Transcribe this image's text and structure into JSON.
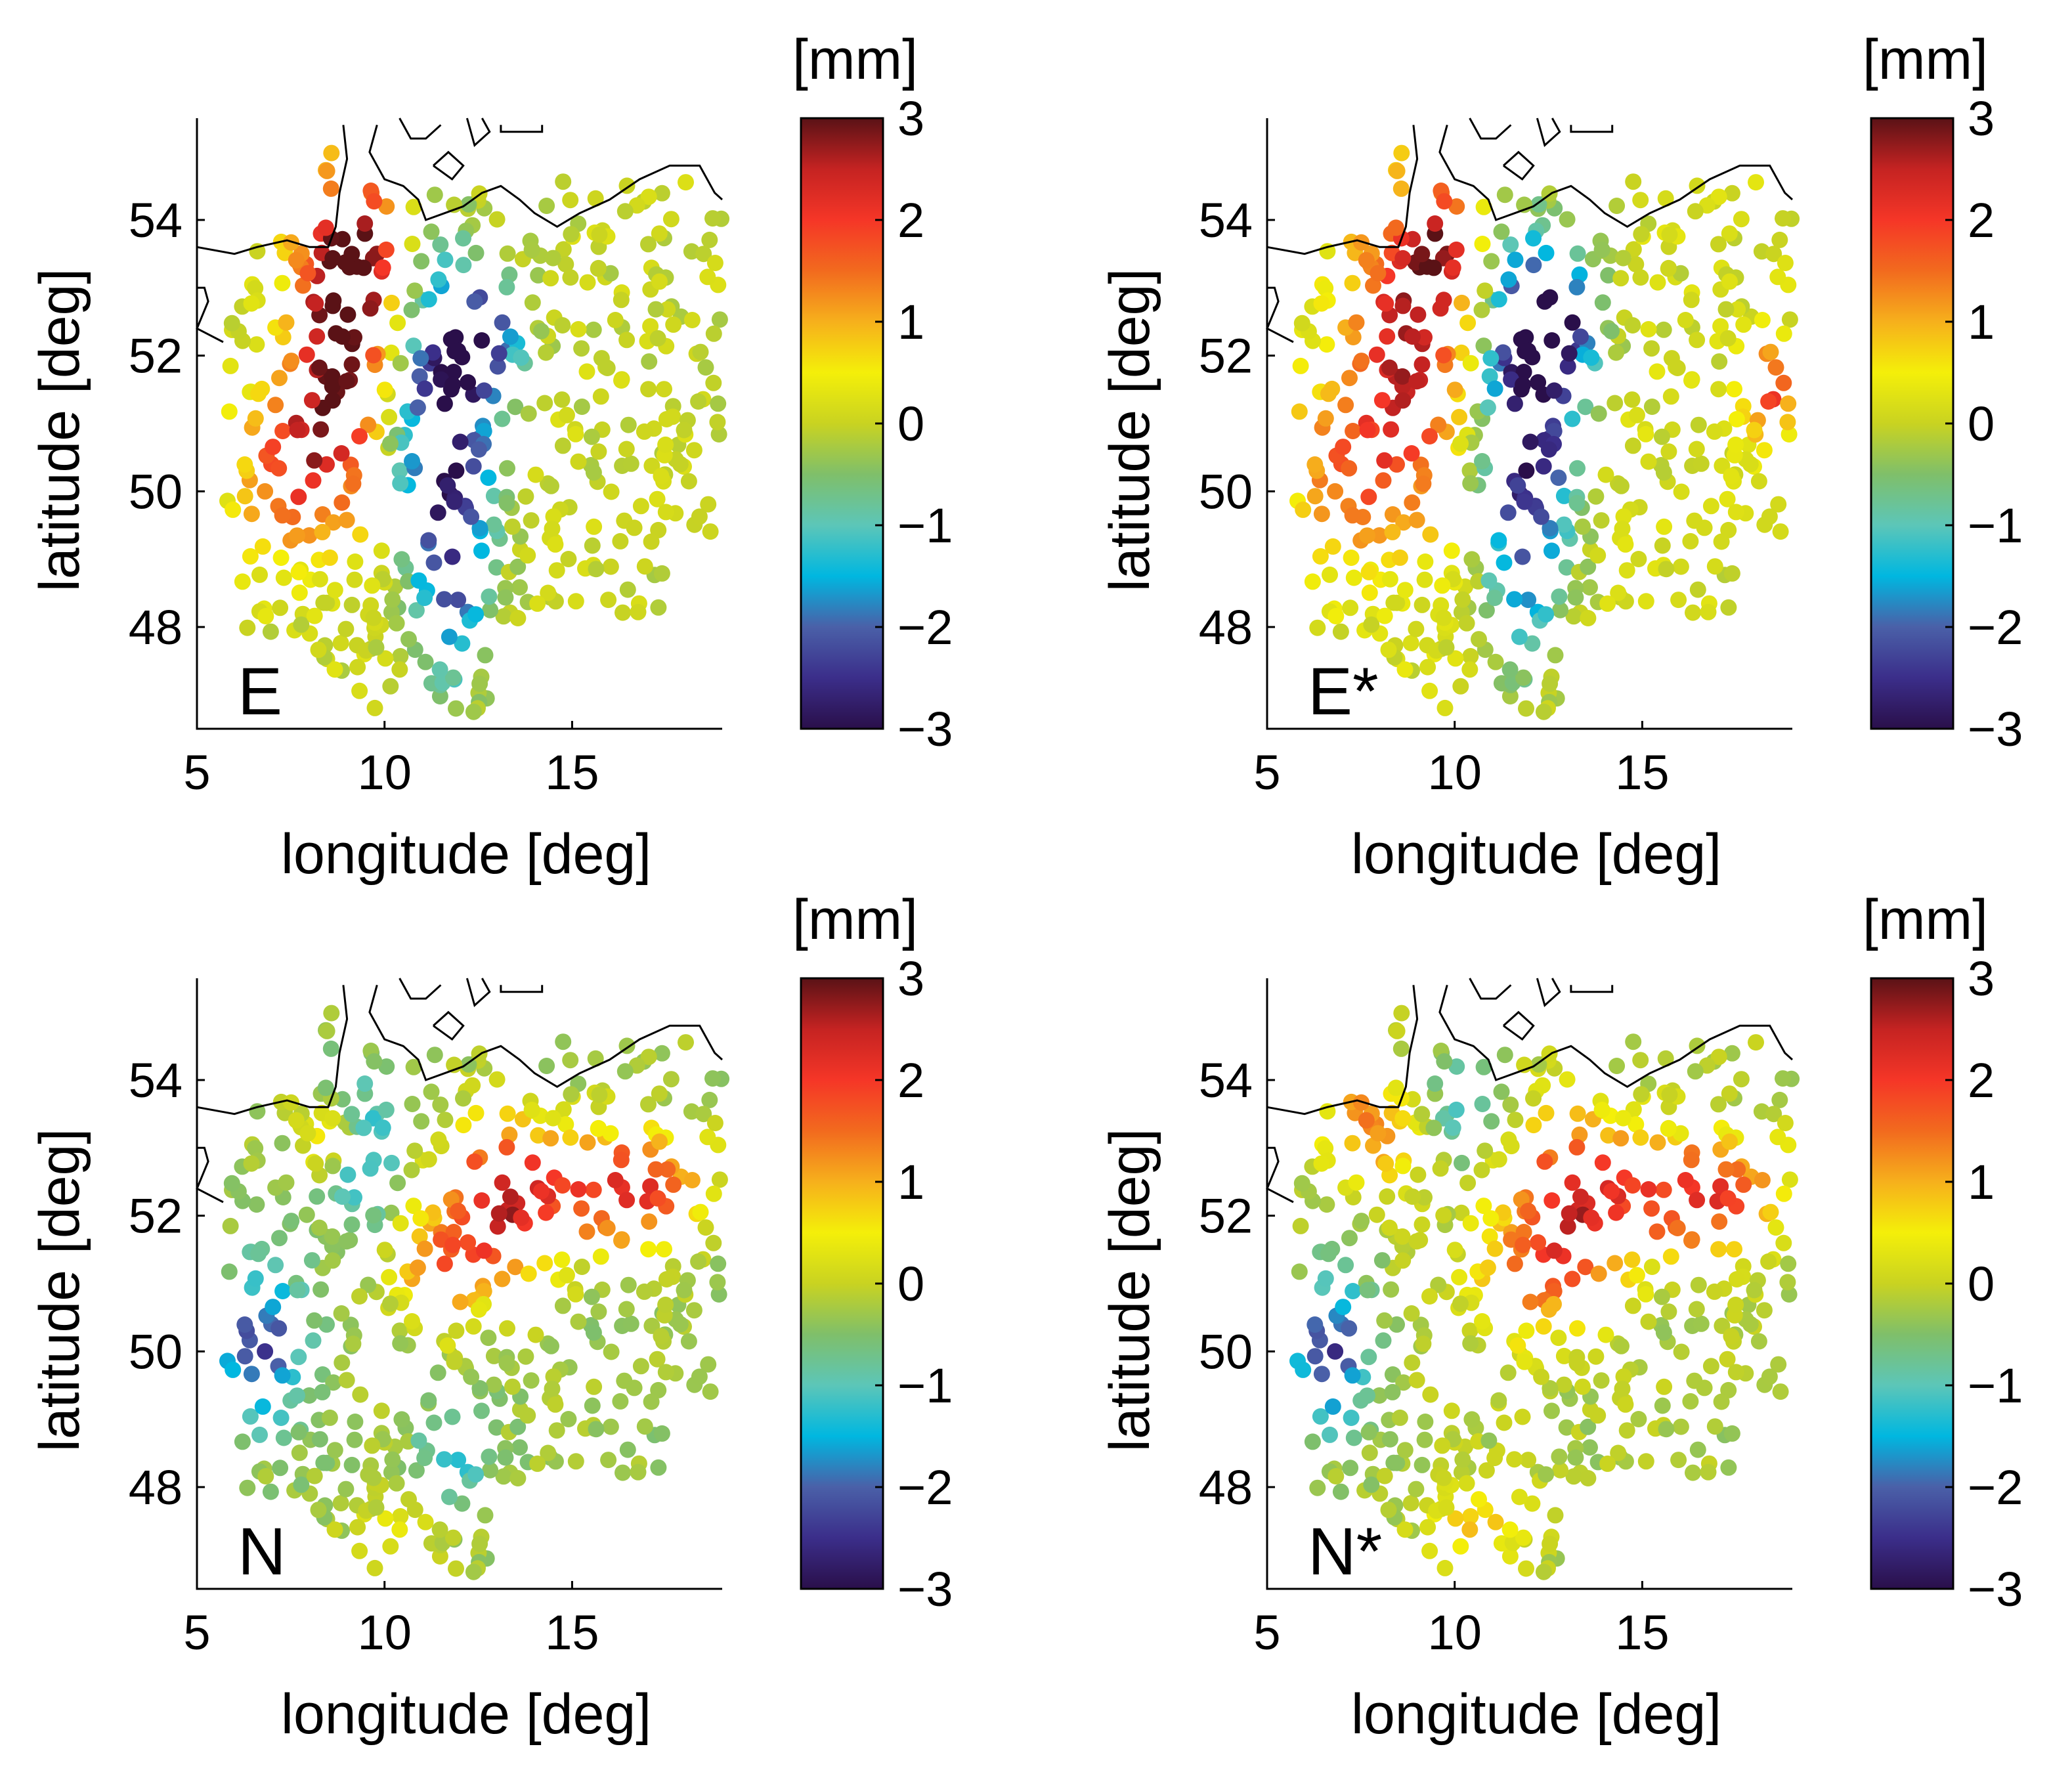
{
  "figure": {
    "description_free": true
  },
  "colorbar": {
    "label": "[mm]",
    "ticks": [
      "3",
      "2",
      "1",
      "0",
      "−1",
      "−2",
      "−3"
    ],
    "tick_values": [
      3,
      2,
      1,
      0,
      -1,
      -2,
      -3
    ],
    "range": [
      -3,
      3
    ],
    "colormap": [
      "#2a0f4a",
      "#3b2e8a",
      "#4a60a8",
      "#00b7e0",
      "#5cc6b8",
      "#7fbf6a",
      "#c9d321",
      "#f4ef09",
      "#f6b01c",
      "#f26a1e",
      "#f53627",
      "#c52322",
      "#5a1216"
    ]
  },
  "axes": {
    "xlabel": "longitude [deg]",
    "ylabel": "latitude [deg]",
    "xticks": [
      "5",
      "10",
      "15"
    ],
    "yticks": [
      "48",
      "50",
      "52",
      "54"
    ],
    "xlim": [
      5,
      19
    ],
    "ylim": [
      46.5,
      55.5
    ]
  },
  "chart_data": [
    {
      "type": "scatter",
      "panel_label": "E",
      "title": "",
      "xlabel": "longitude [deg]",
      "ylabel": "latitude [deg]",
      "xlim": [
        5,
        19
      ],
      "ylim": [
        46.5,
        55.5
      ],
      "color_range": [
        -3,
        3
      ],
      "color_label": "[mm]",
      "field": {
        "background": 0.0,
        "anomalies": [
          {
            "lon": 8.8,
            "lat": 52.2,
            "sx": 0.9,
            "sy": 1.6,
            "amp": 2.8
          },
          {
            "lon": 9.3,
            "lat": 53.5,
            "sx": 0.8,
            "sy": 0.7,
            "amp": 2.0
          },
          {
            "lon": 7.6,
            "lat": 50.6,
            "sx": 0.9,
            "sy": 0.8,
            "amp": 1.6
          },
          {
            "lon": 11.6,
            "lat": 51.0,
            "sx": 0.9,
            "sy": 1.5,
            "amp": -3.0
          },
          {
            "lon": 12.6,
            "lat": 52.2,
            "sx": 0.7,
            "sy": 0.6,
            "amp": -2.2
          },
          {
            "lon": 11.8,
            "lat": 48.5,
            "sx": 0.6,
            "sy": 1.0,
            "amp": -1.8
          },
          {
            "lon": 6.8,
            "lat": 49.6,
            "sx": 1.0,
            "sy": 0.7,
            "amp": 0.6
          }
        ]
      }
    },
    {
      "type": "scatter",
      "panel_label": "E*",
      "title": "",
      "xlabel": "longitude [deg]",
      "ylabel": "latitude [deg]",
      "xlim": [
        5,
        19
      ],
      "ylim": [
        46.5,
        55.5
      ],
      "color_range": [
        -3,
        3
      ],
      "color_label": "[mm]",
      "field": {
        "background": 0.1,
        "anomalies": [
          {
            "lon": 8.7,
            "lat": 52.1,
            "sx": 1.1,
            "sy": 1.6,
            "amp": 2.4
          },
          {
            "lon": 9.6,
            "lat": 53.6,
            "sx": 0.7,
            "sy": 0.6,
            "amp": 1.8
          },
          {
            "lon": 7.0,
            "lat": 50.2,
            "sx": 1.1,
            "sy": 0.9,
            "amp": 1.2
          },
          {
            "lon": 12.0,
            "lat": 51.2,
            "sx": 0.9,
            "sy": 1.6,
            "amp": -3.0
          },
          {
            "lon": 12.6,
            "lat": 52.5,
            "sx": 0.8,
            "sy": 0.7,
            "amp": -2.4
          },
          {
            "lon": 11.8,
            "lat": 48.6,
            "sx": 0.6,
            "sy": 1.0,
            "amp": -1.4
          },
          {
            "lon": 18.4,
            "lat": 51.5,
            "sx": 0.5,
            "sy": 0.5,
            "amp": 2.0
          }
        ]
      }
    },
    {
      "type": "scatter",
      "panel_label": "N",
      "title": "",
      "xlabel": "longitude [deg]",
      "ylabel": "latitude [deg]",
      "xlim": [
        5,
        19
      ],
      "ylim": [
        46.5,
        55.5
      ],
      "color_range": [
        -3,
        3
      ],
      "color_label": "[mm]",
      "field": {
        "background": -0.3,
        "anomalies": [
          {
            "lon": 13.2,
            "lat": 52.3,
            "sx": 1.1,
            "sy": 0.8,
            "amp": 2.8
          },
          {
            "lon": 16.5,
            "lat": 52.4,
            "sx": 1.4,
            "sy": 0.6,
            "amp": 2.6
          },
          {
            "lon": 11.5,
            "lat": 51.2,
            "sx": 0.9,
            "sy": 0.6,
            "amp": 1.6
          },
          {
            "lon": 8.6,
            "lat": 53.2,
            "sx": 0.6,
            "sy": 0.4,
            "amp": 1.6
          },
          {
            "lon": 6.7,
            "lat": 50.1,
            "sx": 0.8,
            "sy": 0.8,
            "amp": -2.0
          },
          {
            "lon": 9.3,
            "lat": 53.0,
            "sx": 0.7,
            "sy": 0.8,
            "amp": -1.4
          },
          {
            "lon": 11.8,
            "lat": 48.4,
            "sx": 0.6,
            "sy": 0.6,
            "amp": -1.2
          },
          {
            "lon": 10.5,
            "lat": 47.3,
            "sx": 1.0,
            "sy": 0.5,
            "amp": 0.6
          }
        ]
      }
    },
    {
      "type": "scatter",
      "panel_label": "N*",
      "title": "",
      "xlabel": "longitude [deg]",
      "ylabel": "latitude [deg]",
      "xlim": [
        5,
        19
      ],
      "ylim": [
        46.5,
        55.5
      ],
      "color_range": [
        -3,
        3
      ],
      "color_label": "[mm]",
      "field": {
        "background": -0.2,
        "anomalies": [
          {
            "lon": 13.2,
            "lat": 52.3,
            "sx": 1.2,
            "sy": 0.9,
            "amp": 2.4
          },
          {
            "lon": 16.6,
            "lat": 52.3,
            "sx": 1.5,
            "sy": 0.6,
            "amp": 2.4
          },
          {
            "lon": 12.0,
            "lat": 51.0,
            "sx": 1.2,
            "sy": 0.7,
            "amp": 1.2
          },
          {
            "lon": 7.8,
            "lat": 53.3,
            "sx": 0.9,
            "sy": 0.6,
            "amp": 1.6
          },
          {
            "lon": 6.7,
            "lat": 50.0,
            "sx": 0.7,
            "sy": 0.8,
            "amp": -2.2
          },
          {
            "lon": 10.2,
            "lat": 53.7,
            "sx": 0.7,
            "sy": 0.6,
            "amp": -1.0
          },
          {
            "lon": 10.6,
            "lat": 47.4,
            "sx": 0.9,
            "sy": 0.5,
            "amp": 1.0
          }
        ]
      }
    }
  ],
  "stations": {
    "count": 560,
    "seed": 917,
    "lon_range": [
      5.8,
      19.0
    ],
    "lat_range": [
      46.7,
      55.0
    ]
  },
  "coastline": [
    [
      [
        5.0,
        53.6
      ],
      [
        6.0,
        53.5
      ],
      [
        6.6,
        53.6
      ],
      [
        7.4,
        53.7
      ],
      [
        8.0,
        53.6
      ],
      [
        8.5,
        53.6
      ],
      [
        8.7,
        53.9
      ],
      [
        8.8,
        54.4
      ],
      [
        9.0,
        54.9
      ],
      [
        8.9,
        55.4
      ]
    ],
    [
      [
        5.0,
        53.0
      ],
      [
        5.2,
        53.0
      ],
      [
        5.3,
        52.8
      ],
      [
        5.0,
        52.4
      ],
      [
        5.7,
        52.2
      ]
    ],
    [
      [
        9.8,
        55.4
      ],
      [
        9.6,
        55.0
      ],
      [
        10.0,
        54.6
      ],
      [
        10.5,
        54.5
      ],
      [
        10.9,
        54.3
      ],
      [
        11.1,
        54.0
      ],
      [
        11.6,
        54.1
      ],
      [
        12.1,
        54.2
      ],
      [
        12.6,
        54.4
      ],
      [
        13.1,
        54.5
      ],
      [
        13.6,
        54.3
      ],
      [
        14.0,
        54.1
      ],
      [
        14.6,
        53.9
      ],
      [
        15.2,
        54.1
      ],
      [
        16.0,
        54.3
      ],
      [
        16.8,
        54.6
      ],
      [
        17.6,
        54.8
      ],
      [
        18.4,
        54.8
      ],
      [
        18.8,
        54.4
      ],
      [
        19.0,
        54.3
      ]
    ],
    [
      [
        10.4,
        55.5
      ],
      [
        10.7,
        55.2
      ],
      [
        11.1,
        55.2
      ],
      [
        11.5,
        55.4
      ]
    ],
    [
      [
        12.2,
        55.5
      ],
      [
        12.4,
        55.1
      ],
      [
        12.8,
        55.3
      ],
      [
        12.6,
        55.5
      ]
    ],
    [
      [
        11.3,
        54.8
      ],
      [
        11.8,
        54.6
      ],
      [
        12.1,
        54.8
      ],
      [
        11.7,
        55.0
      ],
      [
        11.3,
        54.8
      ]
    ],
    [
      [
        13.1,
        55.4
      ],
      [
        13.1,
        55.3
      ],
      [
        14.2,
        55.3
      ],
      [
        14.2,
        55.4
      ]
    ]
  ]
}
